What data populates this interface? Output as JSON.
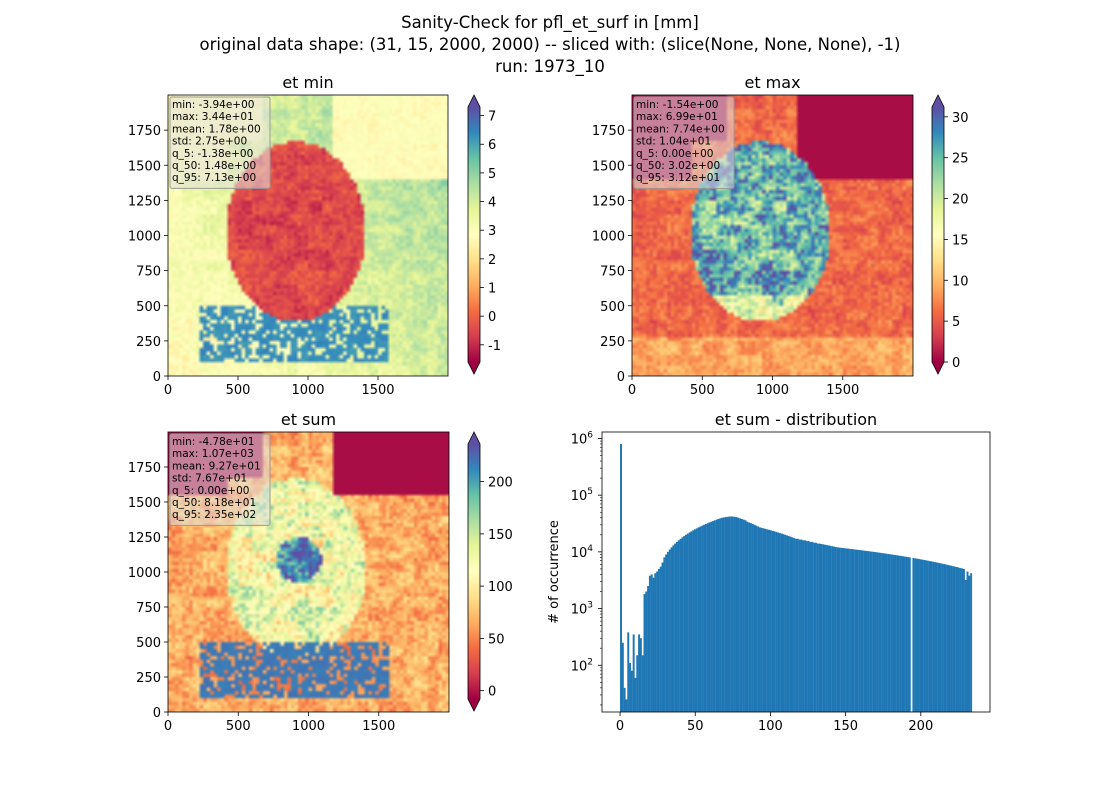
{
  "figure": {
    "title_lines": [
      "Sanity-Check for pfl_et_surf in [mm]",
      "original data shape: (31, 15, 2000, 2000) -- sliced with: (slice(None, None, None), -1)",
      "run: 1973_10"
    ]
  },
  "colors": {
    "cmap": [
      "#9e0142",
      "#d53e4f",
      "#f46d43",
      "#fdae61",
      "#fee08b",
      "#ffffbf",
      "#e6f598",
      "#abdda4",
      "#66c2a5",
      "#3288bd",
      "#5e4fa2"
    ],
    "hist_bar": "#1f77b4",
    "stats_box_bg": "#e0e0e0"
  },
  "chart_data": [
    {
      "type": "heatmap",
      "title": "et min",
      "xlim": [
        0,
        2000
      ],
      "ylim": [
        0,
        2000
      ],
      "xticks": [
        0,
        500,
        1000,
        1500
      ],
      "yticks": [
        0,
        250,
        500,
        750,
        1000,
        1250,
        1500,
        1750
      ],
      "colorbar": {
        "range": [
          -1.6,
          7.3
        ],
        "ticks": [
          -1,
          0,
          1,
          2,
          3,
          4,
          5,
          6,
          7
        ],
        "extend": "both"
      },
      "stats": [
        "min: -3.94e+00",
        "max: 3.44e+01",
        "mean: 1.78e+00",
        "std: 2.75e+00",
        "q_5: -1.38e+00",
        "q_50: 1.48e+00",
        "q_95: 7.13e+00"
      ]
    },
    {
      "type": "heatmap",
      "title": "et max",
      "xlim": [
        0,
        2000
      ],
      "ylim": [
        0,
        2000
      ],
      "xticks": [
        0,
        500,
        1000,
        1500
      ],
      "yticks": [
        0,
        250,
        500,
        750,
        1000,
        1250,
        1500,
        1750
      ],
      "colorbar": {
        "range": [
          0,
          31.2
        ],
        "ticks": [
          0,
          5,
          10,
          15,
          20,
          25,
          30
        ],
        "extend": "both"
      },
      "stats": [
        "min: -1.54e+00",
        "max: 6.99e+01",
        "mean: 7.74e+00",
        "std: 1.04e+01",
        "q_5: 0.00e+00",
        "q_50: 3.02e+00",
        "q_95: 3.12e+01"
      ]
    },
    {
      "type": "heatmap",
      "title": "et sum",
      "xlim": [
        0,
        2000
      ],
      "ylim": [
        0,
        2000
      ],
      "xticks": [
        0,
        500,
        1000,
        1500
      ],
      "yticks": [
        0,
        250,
        500,
        750,
        1000,
        1250,
        1500,
        1750
      ],
      "colorbar": {
        "range": [
          -8,
          236
        ],
        "ticks": [
          0,
          50,
          100,
          150,
          200
        ],
        "extend": "both"
      },
      "stats": [
        "min: -4.78e+01",
        "max: 1.07e+03",
        "mean: 9.27e+01",
        "std: 7.67e+01",
        "q_5: 0.00e+00",
        "q_50: 8.18e+01",
        "q_95: 2.35e+02"
      ]
    },
    {
      "type": "bar",
      "title": "et sum - distribution",
      "ylabel": "# of occurrence",
      "xlabel": "",
      "yscale": "log",
      "xlim": [
        -12,
        246
      ],
      "ylim": [
        15,
        1300000
      ],
      "xticks": [
        0,
        50,
        100,
        150,
        200
      ],
      "yticks": [
        100,
        1000,
        10000,
        100000,
        1000000
      ],
      "ytick_labels": [
        [
          "10",
          "2"
        ],
        [
          "10",
          "3"
        ],
        [
          "10",
          "4"
        ],
        [
          "10",
          "5"
        ],
        [
          "10",
          "6"
        ]
      ],
      "bin_width": 1.2,
      "bins": [
        [
          0,
          800000
        ],
        [
          1.2,
          250
        ],
        [
          2.4,
          40
        ],
        [
          3.6,
          25
        ],
        [
          4.8,
          380
        ],
        [
          6,
          110
        ],
        [
          7.2,
          80
        ],
        [
          8.4,
          350
        ],
        [
          9.6,
          60
        ],
        [
          10.8,
          150
        ],
        [
          12,
          350
        ],
        [
          13.2,
          300
        ],
        [
          14.4,
          150
        ],
        [
          15.6,
          1800
        ],
        [
          16.8,
          2000
        ],
        [
          18,
          2500
        ],
        [
          19.2,
          3800
        ],
        [
          20.4,
          4000
        ],
        [
          21.6,
          3500
        ],
        [
          22.8,
          4200
        ],
        [
          24,
          4500
        ],
        [
          25.2,
          5000
        ],
        [
          26.4,
          5500
        ],
        [
          27.6,
          6500
        ],
        [
          28.8,
          8000
        ],
        [
          30,
          9000
        ],
        [
          31.2,
          10000
        ],
        [
          32.4,
          11000
        ],
        [
          33.6,
          12000
        ],
        [
          34.8,
          13000
        ],
        [
          36,
          14000
        ],
        [
          37.2,
          15000
        ],
        [
          38.4,
          16000
        ],
        [
          39.6,
          17000
        ],
        [
          40.8,
          18000
        ],
        [
          42,
          19000
        ],
        [
          43.2,
          20000
        ],
        [
          44.4,
          21000
        ],
        [
          45.6,
          22000
        ],
        [
          46.8,
          23000
        ],
        [
          48,
          24000
        ],
        [
          49.2,
          25000
        ],
        [
          50.4,
          26000
        ],
        [
          51.6,
          27000
        ],
        [
          52.8,
          28000
        ],
        [
          54,
          29000
        ],
        [
          55.2,
          30000
        ],
        [
          56.4,
          31000
        ],
        [
          57.6,
          32000
        ],
        [
          58.8,
          33000
        ],
        [
          60,
          34000
        ],
        [
          61.2,
          35000
        ],
        [
          62.4,
          36000
        ],
        [
          63.6,
          37000
        ],
        [
          64.8,
          38000
        ],
        [
          66,
          39000
        ],
        [
          67.2,
          40000
        ],
        [
          68.4,
          40500
        ],
        [
          69.6,
          41000
        ],
        [
          70.8,
          41500
        ],
        [
          72,
          42000
        ],
        [
          73.2,
          42000
        ],
        [
          74.4,
          42000
        ],
        [
          75.6,
          41500
        ],
        [
          76.8,
          41000
        ],
        [
          78,
          40000
        ],
        [
          79.2,
          39000
        ],
        [
          80.4,
          38000
        ],
        [
          81.6,
          37000
        ],
        [
          82.8,
          36000
        ],
        [
          84,
          34000
        ],
        [
          85.2,
          33000
        ],
        [
          86.4,
          32000
        ],
        [
          87.6,
          31000
        ],
        [
          88.8,
          30000
        ],
        [
          90,
          29000
        ],
        [
          91.2,
          28000
        ],
        [
          92.4,
          27000
        ],
        [
          93.6,
          26500
        ],
        [
          94.8,
          26000
        ],
        [
          96,
          25500
        ],
        [
          97.2,
          25000
        ],
        [
          98.4,
          24500
        ],
        [
          99.6,
          24000
        ],
        [
          100.8,
          23500
        ],
        [
          102,
          23000
        ],
        [
          103.2,
          22500
        ],
        [
          104.4,
          22000
        ],
        [
          105.6,
          21500
        ],
        [
          106.8,
          21000
        ],
        [
          108,
          20500
        ],
        [
          109.2,
          20000
        ],
        [
          110.4,
          19500
        ],
        [
          111.6,
          19000
        ],
        [
          112.8,
          18500
        ],
        [
          114,
          18000
        ],
        [
          115.2,
          17500
        ],
        [
          116.4,
          17000
        ],
        [
          117.6,
          17000
        ],
        [
          118.8,
          16500
        ],
        [
          120,
          16500
        ],
        [
          121.2,
          16000
        ],
        [
          122.4,
          16000
        ],
        [
          123.6,
          15500
        ],
        [
          124.8,
          15500
        ],
        [
          126,
          15000
        ],
        [
          127.2,
          15000
        ],
        [
          128.4,
          14500
        ],
        [
          129.6,
          14500
        ],
        [
          130.8,
          14000
        ],
        [
          132,
          14000
        ],
        [
          133.2,
          13800
        ],
        [
          134.4,
          13600
        ],
        [
          135.6,
          13400
        ],
        [
          136.8,
          13200
        ],
        [
          138,
          13000
        ],
        [
          139.2,
          12800
        ],
        [
          140.4,
          12600
        ],
        [
          141.6,
          12400
        ],
        [
          142.8,
          12200
        ],
        [
          144,
          12000
        ],
        [
          145.2,
          11900
        ],
        [
          146.4,
          11800
        ],
        [
          147.6,
          11700
        ],
        [
          148.8,
          11600
        ],
        [
          150,
          11500
        ],
        [
          151.2,
          11400
        ],
        [
          152.4,
          11300
        ],
        [
          153.6,
          11200
        ],
        [
          154.8,
          11100
        ],
        [
          156,
          11000
        ],
        [
          157.2,
          10900
        ],
        [
          158.4,
          10800
        ],
        [
          159.6,
          10700
        ],
        [
          160.8,
          10600
        ],
        [
          162,
          10500
        ],
        [
          163.2,
          10400
        ],
        [
          164.4,
          10300
        ],
        [
          165.6,
          10200
        ],
        [
          166.8,
          10100
        ],
        [
          168,
          10000
        ],
        [
          169.2,
          9900
        ],
        [
          170.4,
          9800
        ],
        [
          171.6,
          9700
        ],
        [
          172.8,
          9600
        ],
        [
          174,
          9500
        ],
        [
          175.2,
          9400
        ],
        [
          176.4,
          9300
        ],
        [
          177.6,
          9200
        ],
        [
          178.8,
          9100
        ],
        [
          180,
          9000
        ],
        [
          181.2,
          8900
        ],
        [
          182.4,
          8800
        ],
        [
          183.6,
          8700
        ],
        [
          184.8,
          8600
        ],
        [
          186,
          8500
        ],
        [
          187.2,
          8400
        ],
        [
          188.4,
          8300
        ],
        [
          189.6,
          8200
        ],
        [
          190.8,
          8100
        ],
        [
          192,
          8000
        ],
        [
          194.4,
          7800
        ],
        [
          195.6,
          7700
        ],
        [
          196.8,
          7600
        ],
        [
          198,
          7500
        ],
        [
          199.2,
          7400
        ],
        [
          200.4,
          7300
        ],
        [
          201.6,
          7200
        ],
        [
          202.8,
          7100
        ],
        [
          204,
          7000
        ],
        [
          205.2,
          6900
        ],
        [
          206.4,
          6800
        ],
        [
          207.6,
          6700
        ],
        [
          208.8,
          6600
        ],
        [
          210,
          6500
        ],
        [
          211.2,
          6400
        ],
        [
          212.4,
          6300
        ],
        [
          213.6,
          6200
        ],
        [
          214.8,
          6100
        ],
        [
          216,
          6000
        ],
        [
          217.2,
          5900
        ],
        [
          218.4,
          5800
        ],
        [
          219.6,
          5700
        ],
        [
          220.8,
          5600
        ],
        [
          222,
          5500
        ],
        [
          223.2,
          5400
        ],
        [
          224.4,
          5300
        ],
        [
          225.6,
          5200
        ],
        [
          226.8,
          5100
        ],
        [
          228,
          5000
        ],
        [
          229.2,
          3200
        ],
        [
          230.4,
          4500
        ],
        [
          231.6,
          3800
        ],
        [
          232.8,
          4200
        ]
      ]
    }
  ]
}
